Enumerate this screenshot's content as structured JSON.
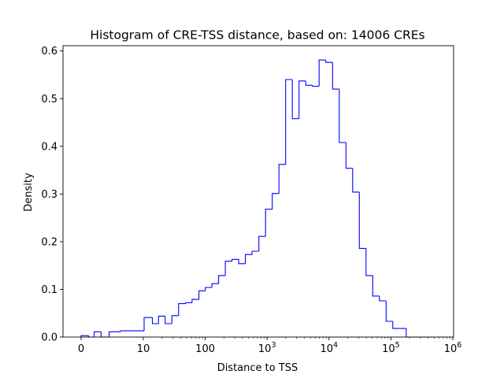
{
  "chart_data": {
    "type": "histogram",
    "title": "Histogram of CRE-TSS distance, based on: 14006 CREs",
    "xlabel": "Distance to TSS",
    "ylabel": "Density",
    "xscale": "symlog-like (linear 0–10, log10 above)",
    "xlim": [
      -1,
      1000000
    ],
    "ylim": [
      0,
      0.61
    ],
    "grid": false,
    "legend": "none",
    "line_color": "#0000ff",
    "x_ticks": [
      {
        "value": 0,
        "label": "0"
      },
      {
        "value": 10,
        "label": "10"
      },
      {
        "value": 100,
        "label": "100"
      },
      {
        "value": 1000,
        "label": "10",
        "exp": "3"
      },
      {
        "value": 10000,
        "label": "10",
        "exp": "4"
      },
      {
        "value": 100000,
        "label": "10",
        "exp": "5"
      },
      {
        "value": 1000000,
        "label": "10",
        "exp": "6"
      }
    ],
    "y_ticks": [
      {
        "value": 0.0,
        "label": "0.0"
      },
      {
        "value": 0.1,
        "label": "0.1"
      },
      {
        "value": 0.2,
        "label": "0.2"
      },
      {
        "value": 0.3,
        "label": "0.3"
      },
      {
        "value": 0.4,
        "label": "0.4"
      },
      {
        "value": 0.5,
        "label": "0.5"
      },
      {
        "value": 0.6,
        "label": "0.6"
      }
    ],
    "bins": {
      "edges": [
        0,
        1.2,
        2.1,
        3.2,
        4.5,
        6.3,
        10.3,
        14.0,
        17.6,
        22.5,
        28.9,
        37.1,
        47.9,
        61.3,
        79.1,
        100.7,
        128.1,
        164.5,
        211.1,
        270.9,
        347.6,
        446.0,
        572.2,
        734.2,
        942.1,
        1208.7,
        1550.9,
        1990.0,
        2553.3,
        3276.0,
        4203.4,
        5393.3,
        6920.1,
        8879.0,
        11392.8,
        14617.9,
        18756.1,
        24065.8,
        30878.7,
        39620.2,
        50836.3,
        65227.6,
        83692.8,
        107385.2,
        137784.1,
        176788.5,
        286000.0,
        480000.0
      ],
      "density": [
        0.003,
        0.0,
        0.011,
        0.0,
        0.011,
        0.013,
        0.041,
        0.028,
        0.044,
        0.028,
        0.045,
        0.07,
        0.072,
        0.079,
        0.097,
        0.104,
        0.112,
        0.129,
        0.159,
        0.163,
        0.154,
        0.173,
        0.18,
        0.211,
        0.268,
        0.301,
        0.362,
        0.54,
        0.458,
        0.537,
        0.528,
        0.526,
        0.581,
        0.576,
        0.52,
        0.408,
        0.354,
        0.304,
        0.186,
        0.129,
        0.086,
        0.076,
        0.033,
        0.018,
        0.018,
        0.0,
        0.0
      ]
    }
  }
}
